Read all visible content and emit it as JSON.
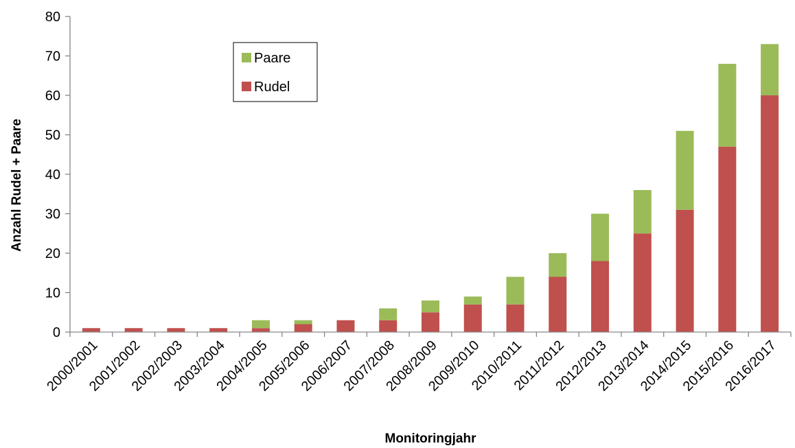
{
  "chart_data": {
    "type": "stacked_bar",
    "x_label": "Monitoringjahr",
    "y_label": "Anzahl Rudel + Paare",
    "categories": [
      "2000/2001",
      "2001/2002",
      "2002/2003",
      "2003/2004",
      "2004/2005",
      "2005/2006",
      "2006/2007",
      "2007/2008",
      "2008/2009",
      "2009/2010",
      "2010/2011",
      "2011/2012",
      "2012/2013",
      "2013/2014",
      "2014/2015",
      "2015/2016",
      "2016/2017"
    ],
    "series": [
      {
        "name": "Rudel",
        "color": "#c0504d",
        "values": [
          1,
          1,
          1,
          1,
          1,
          2,
          3,
          3,
          5,
          7,
          7,
          14,
          18,
          25,
          31,
          47,
          60
        ]
      },
      {
        "name": "Paare",
        "color": "#9bbb59",
        "values": [
          0,
          0,
          0,
          0,
          2,
          1,
          0,
          3,
          3,
          2,
          7,
          6,
          12,
          11,
          20,
          21,
          13
        ]
      }
    ],
    "ylim": [
      0,
      80
    ],
    "yticks": [
      0,
      10,
      20,
      30,
      40,
      50,
      60,
      70,
      80
    ],
    "grid": false
  }
}
